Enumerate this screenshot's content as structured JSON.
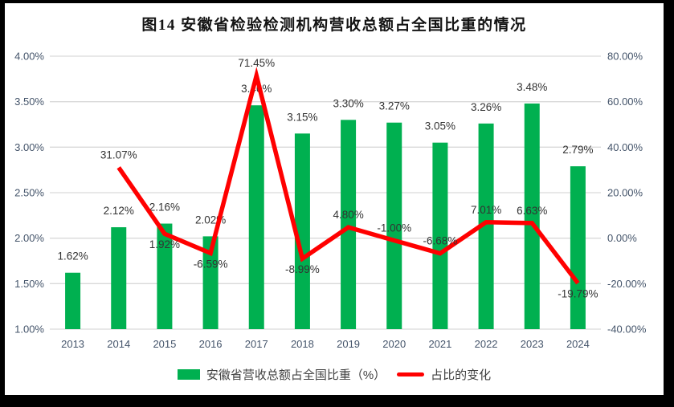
{
  "frame": {
    "border_color": "#000000",
    "page_background": "#ffffff"
  },
  "chart_data": {
    "type": "combo-bar-line",
    "title": "图14 安徽省检验检测机构营收总额占全国比重的情况",
    "categories": [
      "2013",
      "2014",
      "2015",
      "2016",
      "2017",
      "2018",
      "2019",
      "2020",
      "2021",
      "2022",
      "2023",
      "2024"
    ],
    "series": [
      {
        "name": "安徽省营收总额占全国比重（%）",
        "type": "bar",
        "axis": "left",
        "color": "#00b050",
        "values": [
          1.62,
          2.12,
          2.16,
          2.02,
          3.46,
          3.15,
          3.3,
          3.27,
          3.05,
          3.26,
          3.48,
          2.79
        ],
        "labels": [
          "1.62%",
          "2.12%",
          "2.16%",
          "2.02%",
          "3.46%",
          "3.15%",
          "3.30%",
          "3.27%",
          "3.05%",
          "3.26%",
          "3.48%",
          "2.79%"
        ]
      },
      {
        "name": "占比的变化",
        "type": "line",
        "axis": "right",
        "color": "#ff0000",
        "values": [
          null,
          31.07,
          1.92,
          -6.59,
          71.45,
          -8.99,
          4.8,
          -1.0,
          -6.68,
          7.01,
          6.63,
          -19.79
        ],
        "labels": [
          null,
          "31.07%",
          "1.92%",
          "-6.59%",
          "71.45%",
          "-8.99%",
          "4.80%",
          "-1.00%",
          "-6.68%",
          "7.01%",
          "6.63%",
          "-19.79%"
        ],
        "label_side": [
          null,
          "above",
          "below",
          "below",
          "above",
          "below",
          "above",
          "above",
          "above",
          "above",
          "above",
          "below"
        ]
      }
    ],
    "left_axis": {
      "min": 1.0,
      "max": 4.0,
      "step": 0.5,
      "tick_labels": [
        "4.00%",
        "3.50%",
        "3.00%",
        "2.50%",
        "2.00%",
        "1.50%",
        "1.00%"
      ]
    },
    "right_axis": {
      "min": -40,
      "max": 80,
      "step": 20,
      "tick_labels": [
        "80.00%",
        "60.00%",
        "40.00%",
        "20.00%",
        "0.00%",
        "-20.00%",
        "-40.00%"
      ]
    },
    "grid": true,
    "gridline_color": "#d9d9d9",
    "axis_text_color": "#44546a",
    "data_label_color": "#333333",
    "legend_position": "bottom"
  },
  "legend": {
    "items": [
      {
        "label": "安徽省营收总额占全国比重（%）",
        "swatch": "bar",
        "color": "#00b050"
      },
      {
        "label": "占比的变化",
        "swatch": "line",
        "color": "#ff0000"
      }
    ]
  }
}
